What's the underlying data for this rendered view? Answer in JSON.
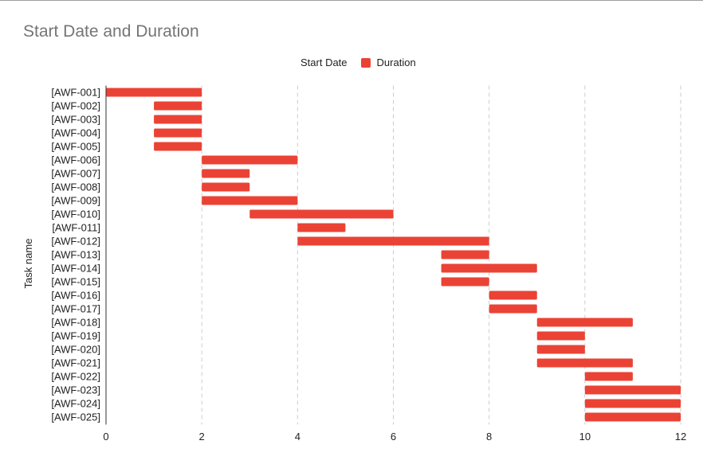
{
  "chart_data": {
    "type": "bar",
    "orientation": "horizontal",
    "stacked": true,
    "title": "Start Date and Duration",
    "ylabel": "Task name",
    "xlabel": "",
    "xlim": [
      0,
      12
    ],
    "xticks": [
      "0",
      "2",
      "4",
      "6",
      "8",
      "10",
      "12"
    ],
    "grid": "vertical dashed",
    "legend_position": "top",
    "categories": [
      "[AWF-001]",
      "[AWF-002]",
      "[AWF-003]",
      "[AWF-004]",
      "[AWF-005]",
      "[AWF-006]",
      "[AWF-007]",
      "[AWF-008]",
      "[AWF-009]",
      "[AWF-010]",
      "[AWF-011]",
      "[AWF-012]",
      "[AWF-013]",
      "[AWF-014]",
      "[AWF-015]",
      "[AWF-016]",
      "[AWF-017]",
      "[AWF-018]",
      "[AWF-019]",
      "[AWF-020]",
      "[AWF-021]",
      "[AWF-022]",
      "[AWF-023]",
      "[AWF-024]",
      "[AWF-025]"
    ],
    "series": [
      {
        "name": "Start Date",
        "color": "#ffffff",
        "values": [
          0,
          1,
          1,
          1,
          1,
          2,
          2,
          2,
          2,
          3,
          4,
          4,
          7,
          7,
          7,
          8,
          8,
          9,
          9,
          9,
          9,
          10,
          10,
          10,
          10
        ]
      },
      {
        "name": "Duration",
        "color": "#ea4335",
        "values": [
          2,
          1,
          1,
          1,
          1,
          2,
          1,
          1,
          2,
          3,
          1,
          4,
          1,
          2,
          1,
          1,
          1,
          2,
          1,
          1,
          2,
          1,
          2,
          2,
          2
        ]
      }
    ]
  }
}
